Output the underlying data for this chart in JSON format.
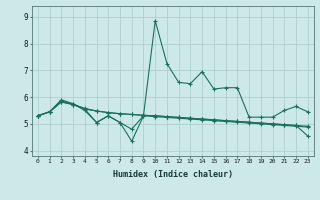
{
  "xlabel": "Humidex (Indice chaleur)",
  "bg_color": "#cce8e8",
  "grid_color": "#aacccc",
  "line_color": "#1a7060",
  "xlim": [
    -0.5,
    23.5
  ],
  "ylim": [
    3.8,
    9.4
  ],
  "xticks": [
    0,
    1,
    2,
    3,
    4,
    5,
    6,
    7,
    8,
    9,
    10,
    11,
    12,
    13,
    14,
    15,
    16,
    17,
    18,
    19,
    20,
    21,
    22,
    23
  ],
  "yticks": [
    4,
    5,
    6,
    7,
    8,
    9
  ],
  "series": {
    "line1": [
      5.3,
      5.45,
      5.9,
      5.75,
      5.5,
      5.05,
      5.3,
      5.05,
      4.35,
      5.3,
      8.85,
      7.25,
      6.55,
      6.5,
      6.95,
      6.3,
      6.35,
      6.35,
      5.25,
      5.25,
      5.25,
      5.5,
      5.65,
      5.45
    ],
    "line2": [
      5.3,
      5.45,
      5.82,
      5.72,
      5.58,
      5.48,
      5.42,
      5.38,
      5.35,
      5.32,
      5.3,
      5.27,
      5.24,
      5.21,
      5.18,
      5.15,
      5.12,
      5.09,
      5.06,
      5.03,
      5.0,
      4.97,
      4.94,
      4.55
    ],
    "line3": [
      5.3,
      5.45,
      5.85,
      5.75,
      5.55,
      5.48,
      5.42,
      5.38,
      5.35,
      5.32,
      5.3,
      5.27,
      5.24,
      5.21,
      5.18,
      5.15,
      5.12,
      5.09,
      5.06,
      5.03,
      5.0,
      4.97,
      4.94,
      4.91
    ],
    "line4": [
      5.3,
      5.45,
      5.82,
      5.72,
      5.55,
      5.05,
      5.3,
      5.05,
      4.8,
      5.3,
      5.27,
      5.24,
      5.21,
      5.18,
      5.15,
      5.12,
      5.09,
      5.06,
      5.03,
      5.0,
      4.97,
      4.94,
      4.91,
      4.88
    ]
  }
}
